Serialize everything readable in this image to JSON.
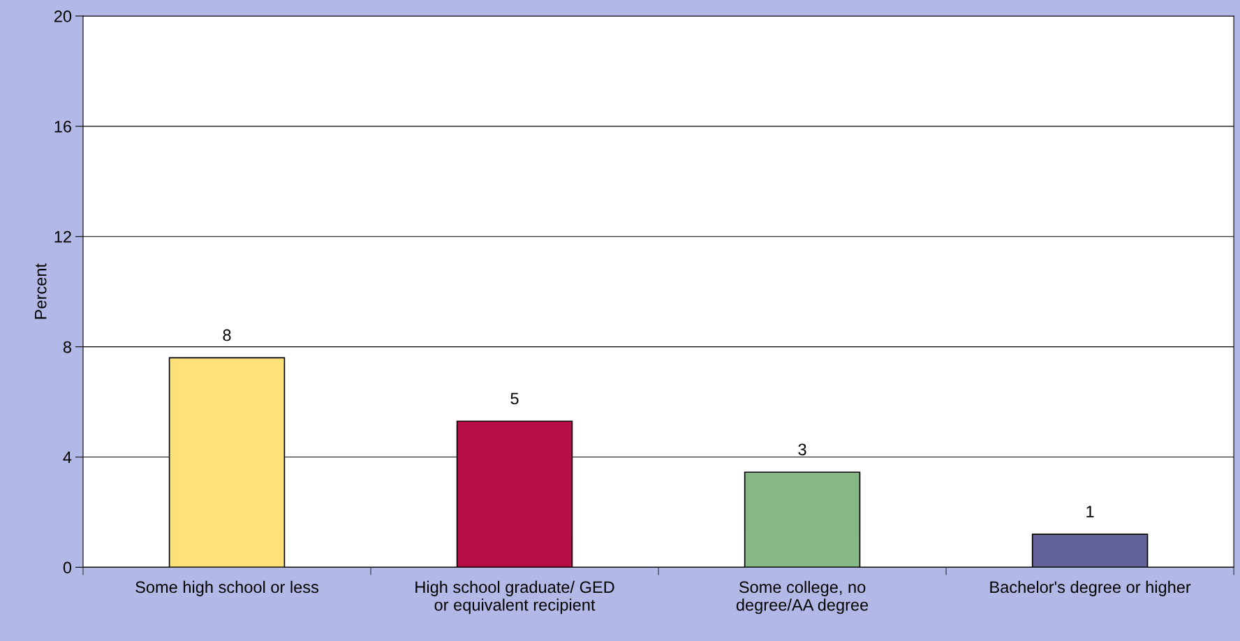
{
  "chart_data": {
    "type": "bar",
    "ylabel": "Percent",
    "categories": [
      "Some high school or less",
      "High school graduate/ GED\nor equivalent recipient",
      "Some college, no\ndegree/AA degree",
      "Bachelor's degree or higher"
    ],
    "values": [
      7.6,
      5.3,
      3.45,
      1.2
    ],
    "value_labels": [
      "8",
      "5",
      "3",
      "1"
    ],
    "colors": [
      "#ffe17a",
      "#b80e46",
      "#85b884",
      "#636399"
    ],
    "ylim": [
      0,
      20
    ],
    "yticks": [
      0,
      4,
      8,
      12,
      16,
      20
    ],
    "grid": "y"
  }
}
